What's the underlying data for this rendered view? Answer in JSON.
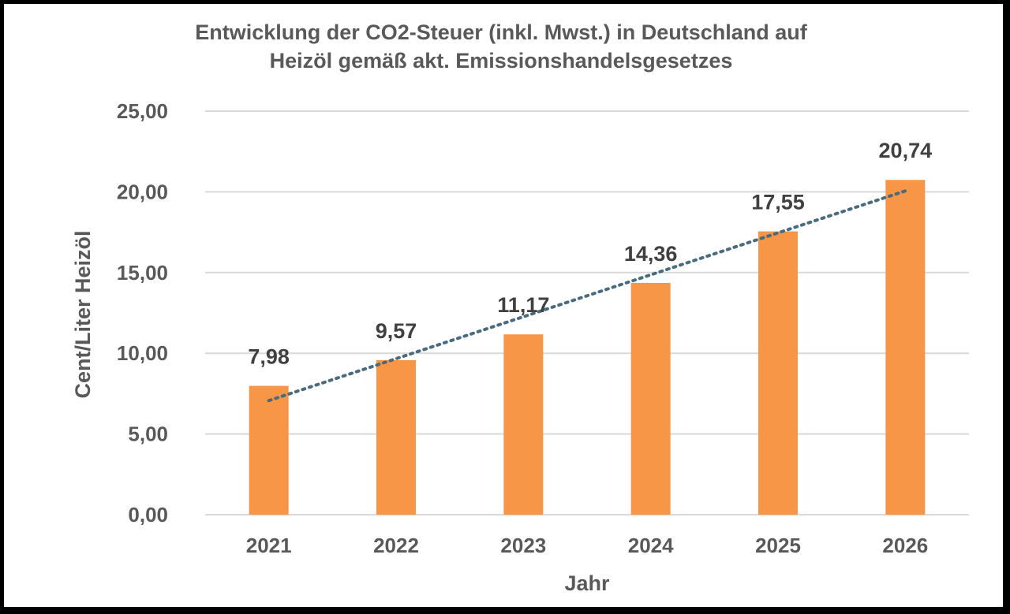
{
  "chart_data": {
    "type": "bar",
    "title_line1": "Entwicklung der CO2-Steuer (inkl. Mwst.) in Deutschland auf",
    "title_line2": "Heizöl gemäß akt. Emissionshandelsgesetzes",
    "xlabel": "Jahr",
    "ylabel": "Cent/Liter Heizöl",
    "categories": [
      "2021",
      "2022",
      "2023",
      "2024",
      "2025",
      "2026"
    ],
    "values": [
      7.98,
      9.57,
      11.17,
      14.36,
      17.55,
      20.74
    ],
    "value_labels": [
      "7,98",
      "9,57",
      "11,17",
      "14,36",
      "17,55",
      "20,74"
    ],
    "ylim": [
      0,
      25
    ],
    "yticks": [
      0,
      5,
      10,
      15,
      20,
      25
    ],
    "ytick_labels": [
      "0,00",
      "5,00",
      "10,00",
      "15,00",
      "20,00",
      "25,00"
    ],
    "trendline": "linear-dotted",
    "grid": true,
    "legend": "none",
    "bar_color": "#F79646",
    "trend_color": "#4A6A7D",
    "grid_color": "#D9D9D9"
  }
}
